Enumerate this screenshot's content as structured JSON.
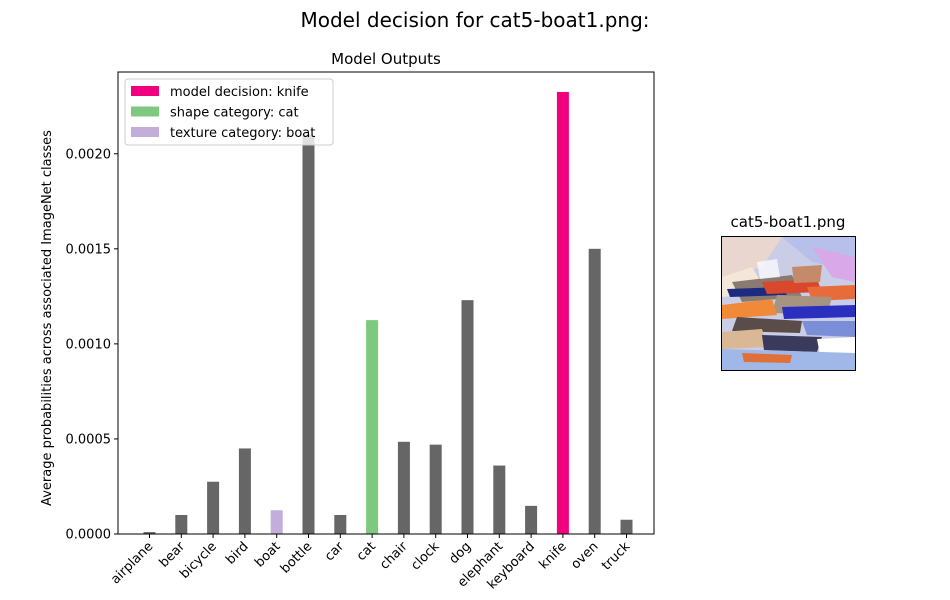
{
  "figure": {
    "suptitle": "Model decision for cat5-boat1.png:",
    "image_title": "cat5-boat1.png",
    "image_icon": "stylized-cat-boat-image"
  },
  "chart_data": {
    "type": "bar",
    "title": "Model Outputs",
    "xlabel": "",
    "ylabel": "Average probabilities across associated ImageNet classes",
    "ylim": [
      0,
      0.00243
    ],
    "yticks": [
      "0.0000",
      "0.0005",
      "0.0010",
      "0.0015",
      "0.0020"
    ],
    "categories": [
      "airplane",
      "bear",
      "bicycle",
      "bird",
      "boat",
      "bottle",
      "car",
      "cat",
      "chair",
      "clock",
      "dog",
      "elephant",
      "keyboard",
      "knife",
      "oven",
      "truck"
    ],
    "values": [
      1e-05,
      0.0001,
      0.000275,
      0.00045,
      0.000125,
      0.0021,
      0.0001,
      0.001125,
      0.000485,
      0.00047,
      0.00123,
      0.00036,
      0.000148,
      0.002325,
      0.0015,
      7.5e-05
    ],
    "colors": [
      "#666666",
      "#666666",
      "#666666",
      "#666666",
      "#c2aed8",
      "#666666",
      "#666666",
      "#7fc97f",
      "#666666",
      "#666666",
      "#666666",
      "#666666",
      "#666666",
      "#f0027f",
      "#666666",
      "#666666"
    ],
    "legend_position": "top-left",
    "legend": [
      {
        "label": "model decision: knife",
        "color": "#f0027f"
      },
      {
        "label": "shape category: cat",
        "color": "#7fc97f"
      },
      {
        "label": "texture category: boat",
        "color": "#c2aed8"
      }
    ],
    "grid": false
  }
}
